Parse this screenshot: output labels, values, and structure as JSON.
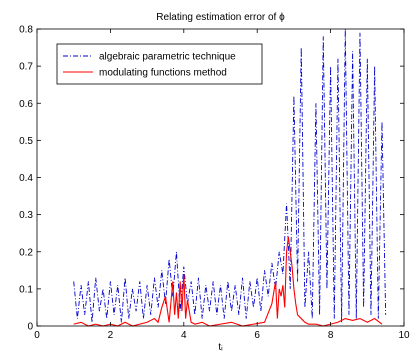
{
  "chart_data": {
    "type": "line",
    "title": "Relating estimation error of ϕ",
    "xlabel": "tᵢ",
    "ylabel": "",
    "xlim": [
      0,
      10
    ],
    "ylim": [
      0,
      0.8
    ],
    "xticks": [
      0,
      2,
      4,
      6,
      8,
      10
    ],
    "xtick_labels": [
      "0",
      "2",
      "4",
      "6",
      "8",
      "10"
    ],
    "yticks": [
      0,
      0.1,
      0.2,
      0.3,
      0.4,
      0.5,
      0.6,
      0.7,
      0.8
    ],
    "ytick_labels": [
      "0",
      "0.1",
      "0.2",
      "0.3",
      "0.4",
      "0.5",
      "0.6",
      "0.7",
      "0.8"
    ],
    "grid": false,
    "legend_position": "top-left",
    "series": [
      {
        "name": "algebraic parametric technique",
        "color": "#0000cc",
        "line_style": "dash-dot",
        "x": [
          1.0,
          1.1,
          1.2,
          1.3,
          1.4,
          1.5,
          1.6,
          1.7,
          1.8,
          1.9,
          2.0,
          2.1,
          2.2,
          2.3,
          2.4,
          2.5,
          2.6,
          2.7,
          2.8,
          2.9,
          3.0,
          3.1,
          3.2,
          3.3,
          3.4,
          3.5,
          3.6,
          3.7,
          3.8,
          3.9,
          4.0,
          4.1,
          4.2,
          4.3,
          4.4,
          4.5,
          4.6,
          4.7,
          4.8,
          4.9,
          5.0,
          5.1,
          5.2,
          5.3,
          5.4,
          5.5,
          5.6,
          5.7,
          5.8,
          5.9,
          6.0,
          6.1,
          6.2,
          6.3,
          6.4,
          6.5,
          6.6,
          6.7,
          6.8,
          6.9,
          7.0,
          7.1,
          7.2,
          7.3,
          7.4,
          7.5,
          7.6,
          7.7,
          7.8,
          7.9,
          8.0,
          8.1,
          8.2,
          8.3,
          8.4,
          8.5,
          8.6,
          8.7,
          8.8,
          8.9,
          9.0,
          9.1,
          9.2,
          9.3,
          9.4,
          9.5
        ],
        "y": [
          0.12,
          0.02,
          0.11,
          0.03,
          0.12,
          0.01,
          0.13,
          0.04,
          0.1,
          0.02,
          0.12,
          0.03,
          0.11,
          0.01,
          0.13,
          0.02,
          0.1,
          0.04,
          0.12,
          0.02,
          0.11,
          0.03,
          0.13,
          0.05,
          0.15,
          0.06,
          0.18,
          0.08,
          0.2,
          0.04,
          0.16,
          0.06,
          0.12,
          0.03,
          0.13,
          0.02,
          0.11,
          0.04,
          0.12,
          0.03,
          0.11,
          0.02,
          0.12,
          0.04,
          0.11,
          0.03,
          0.13,
          0.02,
          0.12,
          0.05,
          0.13,
          0.04,
          0.15,
          0.08,
          0.17,
          0.1,
          0.2,
          0.14,
          0.33,
          0.1,
          0.62,
          0.12,
          0.75,
          0.05,
          0.2,
          0.02,
          0.6,
          0.03,
          0.78,
          0.1,
          0.7,
          0.02,
          0.72,
          0.01,
          0.8,
          0.03,
          0.74,
          0.02,
          0.79,
          0.05,
          0.72,
          0.03,
          0.7,
          0.02,
          0.55,
          0.03
        ]
      },
      {
        "name": "modulating functions method",
        "color": "#ff0000",
        "line_style": "solid",
        "x": [
          1.0,
          1.2,
          1.4,
          1.6,
          1.8,
          2.0,
          2.2,
          2.4,
          2.6,
          2.8,
          3.0,
          3.2,
          3.3,
          3.4,
          3.5,
          3.6,
          3.7,
          3.75,
          3.8,
          3.85,
          3.9,
          3.95,
          4.0,
          4.05,
          4.1,
          4.2,
          4.3,
          4.5,
          4.7,
          5.0,
          5.3,
          5.6,
          5.9,
          6.2,
          6.4,
          6.5,
          6.55,
          6.6,
          6.65,
          6.7,
          6.75,
          6.8,
          6.85,
          6.9,
          6.95,
          7.0,
          7.05,
          7.1,
          7.2,
          7.3,
          7.4,
          7.6,
          7.8,
          8.0,
          8.2,
          8.4,
          8.6,
          8.8,
          9.0,
          9.2,
          9.4
        ],
        "y": [
          0.005,
          0.01,
          0.0,
          0.005,
          0.0,
          0.005,
          0.0,
          0.01,
          0.0,
          0.005,
          0.01,
          0.02,
          0.01,
          0.05,
          0.08,
          0.01,
          0.12,
          0.03,
          0.09,
          0.02,
          0.12,
          0.04,
          0.14,
          0.02,
          0.07,
          0.01,
          0.005,
          0.01,
          0.0,
          0.005,
          0.01,
          0.0,
          0.005,
          0.01,
          0.06,
          0.12,
          0.02,
          0.1,
          0.08,
          0.11,
          0.05,
          0.2,
          0.24,
          0.2,
          0.16,
          0.1,
          0.06,
          0.03,
          0.02,
          0.01,
          0.005,
          0.005,
          0.0,
          0.005,
          0.01,
          0.02,
          0.015,
          0.02,
          0.01,
          0.02,
          0.005
        ]
      }
    ]
  }
}
